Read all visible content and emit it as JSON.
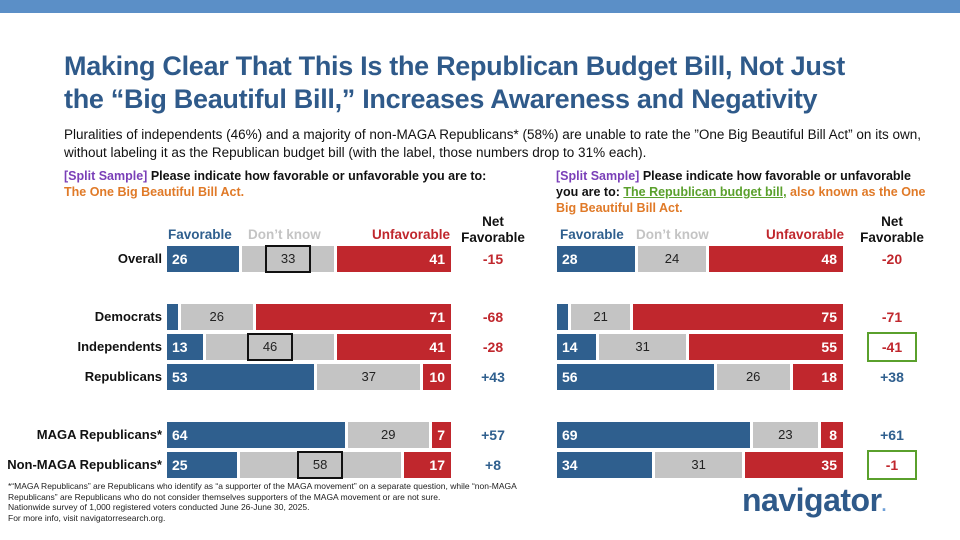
{
  "title": {
    "line1": "Making Clear That This Is the Republican Budget Bill, Not Just",
    "line2": "the “Big Beautiful Bill,” Increases Awareness and Negativity"
  },
  "subtitle": "Pluralities of independents (46%) and a majority of non-MAGA Republicans* (58%) are unable to rate the ”One Big Beautiful Bill Act” on its own, without labeling it as the Republican budget bill (with the label, those numbers drop to 31% each).",
  "left_question": {
    "tag": "[Split Sample]",
    "text": " Please indicate how favorable or unfavorable you are to:",
    "subject": "The One Big Beautiful Bill Act."
  },
  "right_question": {
    "tag": "[Split Sample]",
    "text": " Please indicate how favorable or unfavorable you are to: ",
    "subject_green": "The Republican budget bill,",
    "subject_orange": " also known as the One Big Beautiful Bill Act."
  },
  "legend": {
    "favorable": "Favorable",
    "dont_know": "Don’t know",
    "unfavorable": "Unfavorable",
    "net_line1": "Net",
    "net_line2": "Favorable"
  },
  "colors": {
    "favorable": "#2f5f8e",
    "dont_know": "#c4c4c4",
    "unfavorable": "#c0272d",
    "title": "#2f5a8a",
    "highlight_box": "#5aa02c"
  },
  "chart_data": [
    {
      "type": "bar",
      "stacked": true,
      "title": "The One Big Beautiful Bill Act",
      "categories": [
        "Overall",
        "Democrats",
        "Independents",
        "Republicans",
        "MAGA Republicans*",
        "Non-MAGA Republicans*"
      ],
      "series": [
        {
          "name": "Favorable",
          "values": [
            26,
            4,
            13,
            53,
            64,
            25
          ]
        },
        {
          "name": "Don’t know",
          "values": [
            33,
            26,
            46,
            37,
            29,
            58
          ]
        },
        {
          "name": "Unfavorable",
          "values": [
            41,
            71,
            41,
            10,
            7,
            17
          ]
        }
      ],
      "value_labels": {
        "favorable": [
          "26",
          "",
          "13",
          "53",
          "64",
          "25"
        ],
        "dont_know": [
          "33",
          "26",
          "46",
          "37",
          "29",
          "58"
        ],
        "unfavorable": [
          "41",
          "71",
          "41",
          "10",
          "7",
          "17"
        ]
      },
      "net_favorable": [
        "-15",
        "-68",
        "-28",
        "+43",
        "+57",
        "+8"
      ],
      "highlighted_dont_know": [
        true,
        false,
        true,
        false,
        false,
        true
      ]
    },
    {
      "type": "bar",
      "stacked": true,
      "title": "The Republican budget bill, also known as the One Big Beautiful Bill Act",
      "categories": [
        "Overall",
        "Democrats",
        "Independents",
        "Republicans",
        "MAGA Republicans*",
        "Non-MAGA Republicans*"
      ],
      "series": [
        {
          "name": "Favorable",
          "values": [
            28,
            4,
            14,
            56,
            69,
            34
          ]
        },
        {
          "name": "Don’t know",
          "values": [
            24,
            21,
            31,
            26,
            23,
            31
          ]
        },
        {
          "name": "Unfavorable",
          "values": [
            48,
            75,
            55,
            18,
            8,
            35
          ]
        }
      ],
      "value_labels": {
        "favorable": [
          "28",
          "",
          "14",
          "56",
          "69",
          "34"
        ],
        "dont_know": [
          "24",
          "21",
          "31",
          "26",
          "23",
          "31"
        ],
        "unfavorable": [
          "48",
          "75",
          "55",
          "18",
          "8",
          "35"
        ]
      },
      "net_favorable": [
        "-20",
        "-71",
        "-41",
        "+38",
        "+61",
        "-1"
      ],
      "highlighted_net": [
        false,
        false,
        true,
        false,
        false,
        true
      ]
    }
  ],
  "footnote": [
    "*“MAGA Republicans” are Republicans who identify as “a supporter of the MAGA movement” on a separate question, while “non-MAGA",
    "Republicans” are Republicans who do not consider themselves supporters of the MAGA movement or are not sure.",
    "Nationwide survey of 1,000 registered voters conducted June 26-June 30, 2025.",
    "For more info, visit navigatorresearch.org."
  ],
  "logo": {
    "text": "navigator",
    "dot": "."
  }
}
